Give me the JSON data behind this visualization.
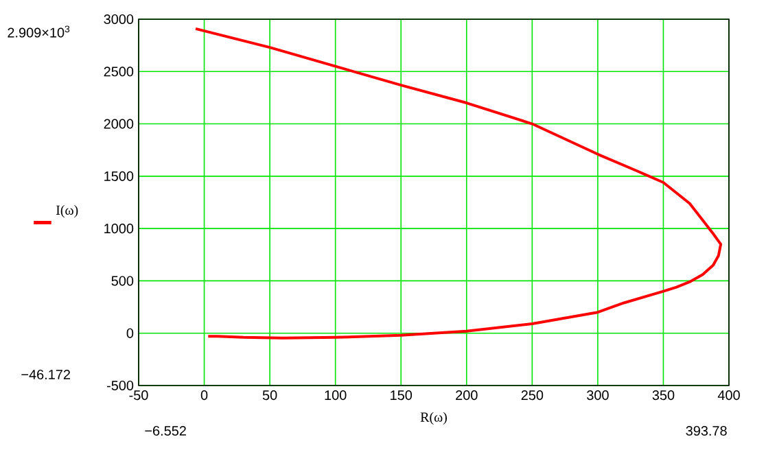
{
  "chart_data": {
    "type": "line",
    "xlabel": "R(ω)",
    "xlim": [
      -50,
      400
    ],
    "ylim": [
      -500,
      3000
    ],
    "xticks": [
      -50,
      0,
      50,
      100,
      150,
      200,
      250,
      300,
      350,
      400
    ],
    "yticks": [
      -500,
      0,
      500,
      1000,
      1500,
      2000,
      2500,
      3000
    ],
    "grid": true,
    "legend": "left",
    "annotations": [
      "2.909×10$^{3}$",
      "−46.172",
      "−6.552",
      "393.78"
    ],
    "series": [
      {
        "name": "I(ω)",
        "color": "#ff0000",
        "x": [
          -6.552,
          50,
          100,
          150,
          200,
          250,
          300,
          330,
          350,
          370,
          380,
          388,
          392,
          393.78,
          392,
          388,
          380,
          370,
          360,
          350,
          320,
          300,
          250,
          200,
          150,
          100,
          60,
          30,
          10,
          3
        ],
        "values": [
          2909,
          2730,
          2550,
          2370,
          2200,
          2000,
          1710,
          1550,
          1440,
          1240,
          1080,
          950,
          880,
          850,
          740,
          650,
          560,
          490,
          440,
          400,
          290,
          200,
          90,
          20,
          -20,
          -40,
          -46.172,
          -40,
          -30,
          -30
        ]
      }
    ]
  }
}
